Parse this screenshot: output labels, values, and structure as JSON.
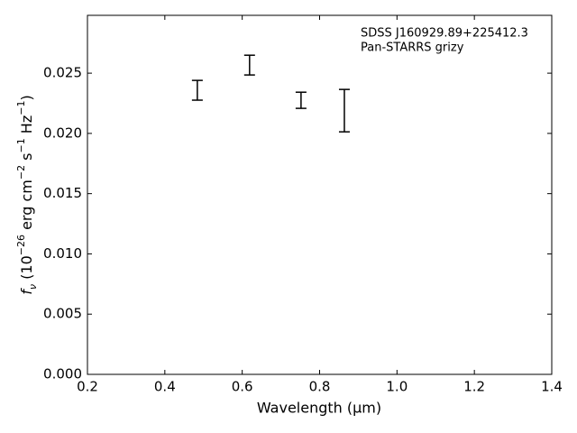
{
  "chart_data": {
    "type": "errorbar",
    "annotation": [
      "SDSS J160929.89+225412.3",
      "Pan-STARRS grizy"
    ],
    "xlabel": "Wavelength (μm)",
    "ylabel": [
      {
        "text": "f"
      },
      {
        "text": "ν",
        "shift": "sub"
      },
      {
        "text": " (10"
      },
      {
        "text": "−26",
        "shift": "super"
      },
      {
        "text": " erg cm"
      },
      {
        "text": "−2",
        "shift": "super"
      },
      {
        "text": " s"
      },
      {
        "text": "−1",
        "shift": "super"
      },
      {
        "text": " Hz"
      },
      {
        "text": "−1",
        "shift": "super"
      },
      {
        "text": ")"
      }
    ],
    "x": [
      0.484,
      0.619,
      0.752,
      0.864
    ],
    "values": [
      0.02358,
      0.02567,
      0.02275,
      0.02189
    ],
    "errors": [
      0.00082,
      0.00082,
      0.00067,
      0.00176
    ],
    "color": "#000000",
    "xlim": [
      0.2,
      1.4
    ],
    "xticks": [
      0.2,
      0.4,
      0.6,
      0.8,
      {
        "value": 1,
        "label": "1.0"
      },
      1.2,
      1.4
    ],
    "ylim": [
      0,
      0.0298
    ],
    "yticks": [
      {
        "value": 0,
        "label": "0.000"
      },
      {
        "value": 0.005,
        "label": "0.005"
      },
      {
        "value": 0.01,
        "label": "0.010"
      },
      {
        "value": 0.015,
        "label": "0.015"
      },
      {
        "value": 0.02,
        "label": "0.020"
      },
      {
        "value": 0.025,
        "label": "0.025"
      }
    ],
    "grid": false
  }
}
